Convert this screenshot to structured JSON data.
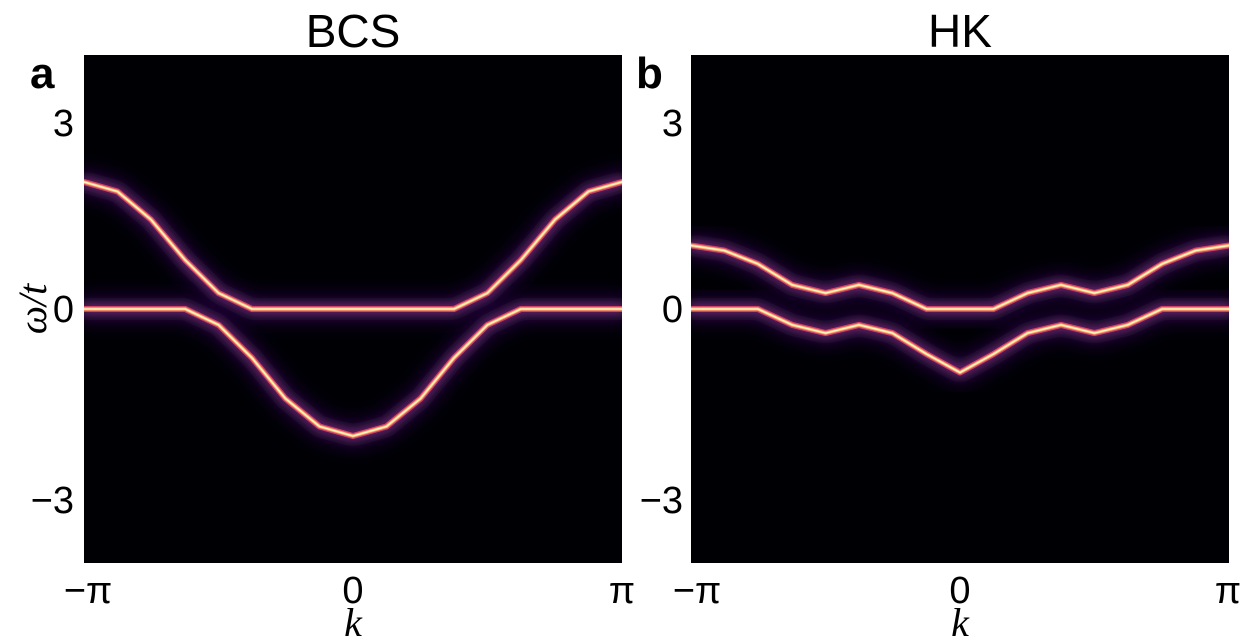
{
  "chart_data": [
    {
      "type": "heatmap",
      "panel_label": "a",
      "title": "BCS",
      "xlabel": "k",
      "ylabel": "ω/t",
      "x_ticks": [
        "−π",
        "0",
        "π"
      ],
      "y_ticks": [
        "3",
        "0",
        "−3"
      ],
      "xlim": [
        -3.14159,
        3.14159
      ],
      "ylim": [
        -4.0,
        4.0
      ],
      "colormap": "inferno",
      "background": "#000004",
      "bands": [
        {
          "x": [
            -3.14,
            -2.75,
            -2.36,
            -1.96,
            -1.57,
            -1.18,
            -0.79,
            -0.39,
            0.0,
            0.39,
            0.79,
            1.18,
            1.57,
            1.96,
            2.36,
            2.75,
            3.14
          ],
          "y": [
            2.0,
            1.85,
            1.41,
            0.77,
            0.25,
            0.0,
            0.0,
            0.0,
            0.0,
            0.0,
            0.0,
            0.0,
            0.25,
            0.77,
            1.41,
            1.85,
            2.0
          ]
        },
        {
          "x": [
            -3.14,
            -2.75,
            -2.36,
            -1.96,
            -1.57,
            -1.18,
            -0.79,
            -0.39,
            0.0,
            0.39,
            0.79,
            1.18,
            1.57,
            1.96,
            2.36,
            2.75,
            3.14
          ],
          "y": [
            0.0,
            0.0,
            0.0,
            0.0,
            -0.25,
            -0.77,
            -1.41,
            -1.85,
            -2.0,
            -1.85,
            -1.41,
            -0.77,
            -0.25,
            0.0,
            0.0,
            0.0,
            0.0
          ]
        }
      ],
      "gap": 0.25
    },
    {
      "type": "heatmap",
      "panel_label": "b",
      "title": "HK",
      "xlabel": "k",
      "ylabel": "",
      "x_ticks": [
        "−π",
        "0",
        "π"
      ],
      "y_ticks": [
        "3",
        "0",
        "−3"
      ],
      "xlim": [
        -3.14159,
        3.14159
      ],
      "ylim": [
        -4.0,
        4.0
      ],
      "colormap": "inferno",
      "background": "#000004",
      "bands": [
        {
          "x": [
            -3.14,
            -2.75,
            -2.36,
            -1.96,
            -1.57,
            -1.18,
            -0.79,
            -0.39,
            0.0,
            0.39,
            0.79,
            1.18,
            1.57,
            1.96,
            2.36,
            2.75,
            3.14
          ],
          "y": [
            1.0,
            0.92,
            0.71,
            0.38,
            0.25,
            0.38,
            0.25,
            0.0,
            0.0,
            0.0,
            0.25,
            0.38,
            0.25,
            0.38,
            0.71,
            0.92,
            1.0
          ]
        },
        {
          "x": [
            -3.14,
            -2.75,
            -2.36,
            -1.96,
            -1.57,
            -1.18,
            -0.79,
            -0.39,
            0.0,
            0.39,
            0.79,
            1.18,
            1.57,
            1.96,
            2.36,
            2.75,
            3.14
          ],
          "y": [
            0.0,
            0.0,
            0.0,
            -0.25,
            -0.38,
            -0.25,
            -0.38,
            -0.71,
            -1.0,
            -0.71,
            -0.38,
            -0.25,
            -0.38,
            -0.25,
            0.0,
            0.0,
            0.0
          ]
        }
      ],
      "gap": 0.25
    }
  ]
}
